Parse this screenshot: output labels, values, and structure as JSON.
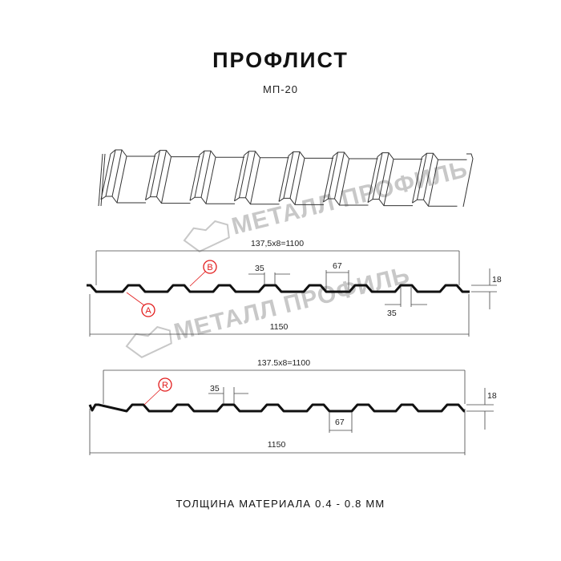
{
  "header": {
    "title": "ПРОФЛИСТ",
    "subtitle": "МП-20"
  },
  "watermark": "МЕТАЛЛ ПРОФИЛЬ",
  "profile_a_b": {
    "pitch_label": "137,5x8=1100",
    "width_label": "1150",
    "top_width_label": "35",
    "bottom_top_width_label": "35",
    "valley_width_label": "67",
    "height_label": "18",
    "markers": [
      "B",
      "A"
    ]
  },
  "profile_r": {
    "pitch_label": "137.5x8=1100",
    "width_label": "1150",
    "top_width_label": "35",
    "valley_width_label": "67",
    "height_label": "18",
    "markers": [
      "R"
    ]
  },
  "footer": {
    "thickness": "ТОЛЩИНА МАТЕРИАЛА 0.4 - 0.8 ММ"
  },
  "colors": {
    "profile": "#111111",
    "marker": "#e21b1b",
    "watermark": "#c8c8c8"
  }
}
